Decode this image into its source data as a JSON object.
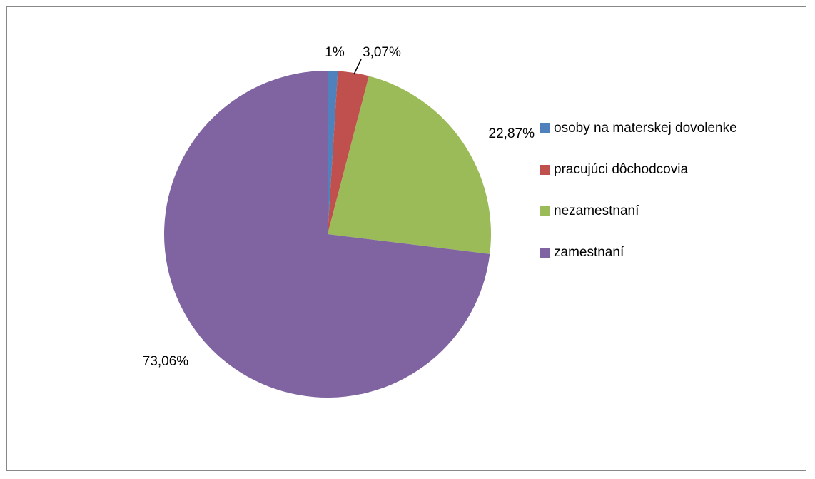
{
  "chart_data": {
    "type": "pie",
    "title": "",
    "categories": [
      "osoby na materskej dovolenke",
      "pracujúci dôchodcovia",
      "nezamestnaní",
      "zamestnaní"
    ],
    "values": [
      1,
      3.07,
      22.87,
      73.06
    ],
    "data_labels": [
      "1%",
      "3,07%",
      "22,87%",
      "73,06%"
    ],
    "colors": [
      "#4F81BD",
      "#C0504D",
      "#9BBB59",
      "#8064A2"
    ],
    "legend_placement": "right",
    "start_angle": "top",
    "direction": "clockwise"
  },
  "legend": {
    "items": [
      {
        "label": "osoby na materskej dovolenke",
        "color": "#4F81BD"
      },
      {
        "label": "pracujúci dôchodcovia",
        "color": "#C0504D"
      },
      {
        "label": "nezamestnaní",
        "color": "#9BBB59"
      },
      {
        "label": "zamestnaní",
        "color": "#8064A2"
      }
    ]
  }
}
